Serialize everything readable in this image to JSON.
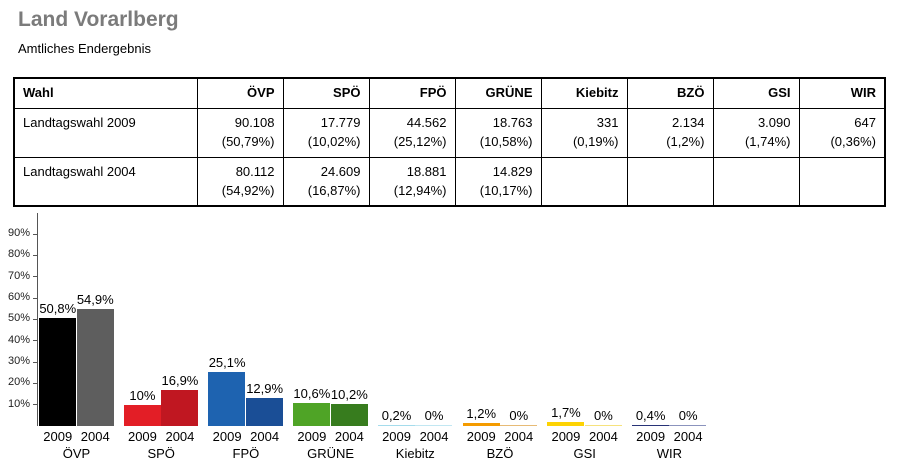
{
  "page": {
    "title": "Land Vorarlberg",
    "subtitle": "Amtliches Endergebnis"
  },
  "table": {
    "headers": [
      "Wahl",
      "ÖVP",
      "SPÖ",
      "FPÖ",
      "GRÜNE",
      "Kiebitz",
      "BZÖ",
      "GSI",
      "WIR"
    ],
    "rows": [
      {
        "label": "Landtagswahl 2009",
        "cells": [
          {
            "votes": "90.108",
            "pct": "(50,79%)"
          },
          {
            "votes": "17.779",
            "pct": "(10,02%)"
          },
          {
            "votes": "44.562",
            "pct": "(25,12%)"
          },
          {
            "votes": "18.763",
            "pct": "(10,58%)"
          },
          {
            "votes": "331",
            "pct": "(0,19%)"
          },
          {
            "votes": "2.134",
            "pct": "(1,2%)"
          },
          {
            "votes": "3.090",
            "pct": "(1,74%)"
          },
          {
            "votes": "647",
            "pct": "(0,36%)"
          }
        ]
      },
      {
        "label": "Landtagswahl 2004",
        "cells": [
          {
            "votes": "80.112",
            "pct": "(54,92%)"
          },
          {
            "votes": "24.609",
            "pct": "(16,87%)"
          },
          {
            "votes": "18.881",
            "pct": "(12,94%)"
          },
          {
            "votes": "14.829",
            "pct": "(10,17%)"
          },
          {
            "votes": "",
            "pct": ""
          },
          {
            "votes": "",
            "pct": ""
          },
          {
            "votes": "",
            "pct": ""
          },
          {
            "votes": "",
            "pct": ""
          }
        ]
      }
    ]
  },
  "chart_data": {
    "type": "bar",
    "title": "",
    "xlabel": "",
    "ylabel": "",
    "ylim": [
      0,
      100
    ],
    "grid": false,
    "legend_position": "none",
    "y_ticks": [
      {
        "value": 90,
        "label": "90%"
      },
      {
        "value": 80,
        "label": "80%"
      },
      {
        "value": 70,
        "label": "70%"
      },
      {
        "value": 60,
        "label": "60%"
      },
      {
        "value": 50,
        "label": "50%"
      },
      {
        "value": 40,
        "label": "40%"
      },
      {
        "value": 30,
        "label": "30%"
      },
      {
        "value": 20,
        "label": "20%"
      },
      {
        "value": 10,
        "label": "10%"
      }
    ],
    "categories": [
      "ÖVP",
      "SPÖ",
      "FPÖ",
      "GRÜNE",
      "Kiebitz",
      "BZÖ",
      "GSI",
      "WIR"
    ],
    "series": [
      {
        "name": "2009",
        "values": [
          50.8,
          10,
          25.1,
          10.6,
          0.2,
          1.2,
          1.7,
          0.4
        ]
      },
      {
        "name": "2004",
        "values": [
          54.9,
          16.9,
          12.9,
          10.2,
          0,
          0,
          0,
          0
        ]
      }
    ],
    "parties": [
      {
        "name": "ÖVP",
        "bars": [
          {
            "year": "2009",
            "value": 50.8,
            "label": "50,8%",
            "color": "#000000"
          },
          {
            "year": "2004",
            "value": 54.9,
            "label": "54,9%",
            "color": "#5e5e5e"
          }
        ]
      },
      {
        "name": "SPÖ",
        "bars": [
          {
            "year": "2009",
            "value": 10,
            "label": "10%",
            "color": "#e31e26"
          },
          {
            "year": "2004",
            "value": 16.9,
            "label": "16,9%",
            "color": "#c01721"
          }
        ]
      },
      {
        "name": "FPÖ",
        "bars": [
          {
            "year": "2009",
            "value": 25.1,
            "label": "25,1%",
            "color": "#1e63b0"
          },
          {
            "year": "2004",
            "value": 12.9,
            "label": "12,9%",
            "color": "#1a4e96"
          }
        ]
      },
      {
        "name": "GRÜNE",
        "bars": [
          {
            "year": "2009",
            "value": 10.6,
            "label": "10,6%",
            "color": "#4fa426"
          },
          {
            "year": "2004",
            "value": 10.2,
            "label": "10,2%",
            "color": "#377c1e"
          }
        ]
      },
      {
        "name": "Kiebitz",
        "bars": [
          {
            "year": "2009",
            "value": 0.2,
            "label": "0,2%",
            "color": "#a5dcec"
          },
          {
            "year": "2004",
            "value": 0,
            "label": "0%",
            "color": "#c2e7f2"
          }
        ]
      },
      {
        "name": "BZÖ",
        "bars": [
          {
            "year": "2009",
            "value": 1.2,
            "label": "1,2%",
            "color": "#f49b00"
          },
          {
            "year": "2004",
            "value": 0,
            "label": "0%",
            "color": "#e7bb76"
          }
        ]
      },
      {
        "name": "GSI",
        "bars": [
          {
            "year": "2009",
            "value": 1.7,
            "label": "1,7%",
            "color": "#fdd303"
          },
          {
            "year": "2004",
            "value": 0,
            "label": "0%",
            "color": "#f6e27d"
          }
        ]
      },
      {
        "name": "WIR",
        "bars": [
          {
            "year": "2009",
            "value": 0.4,
            "label": "0,4%",
            "color": "#283377"
          },
          {
            "year": "2004",
            "value": 0,
            "label": "0%",
            "color": "#8b93bd"
          }
        ]
      }
    ]
  }
}
